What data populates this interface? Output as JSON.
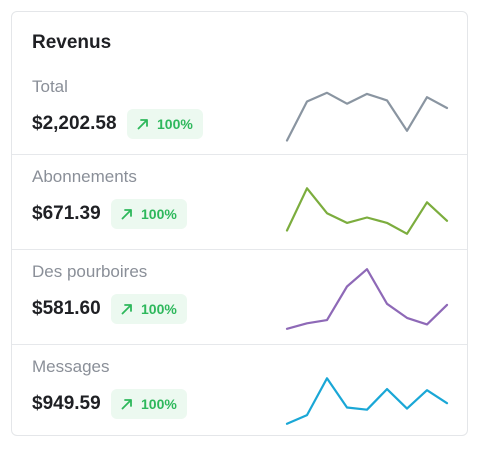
{
  "card": {
    "title": "Revenus"
  },
  "rows": [
    {
      "label": "Total",
      "value": "$2,202.58",
      "change": "100%",
      "trend_icon": "arrow-up-right-icon",
      "line_color": "#8a95a1",
      "sparkline": [
        6,
        42,
        50,
        40,
        49,
        43,
        15,
        46,
        36
      ]
    },
    {
      "label": "Abonnements",
      "value": "$671.39",
      "change": "100%",
      "trend_icon": "arrow-up-right-icon",
      "line_color": "#7cad3e",
      "sparkline": [
        6,
        45,
        22,
        13,
        18,
        13,
        3,
        32,
        15
      ]
    },
    {
      "label": "Des pourboires",
      "value": "$581.60",
      "change": "100%",
      "trend_icon": "arrow-up-right-icon",
      "line_color": "#8e69b7",
      "sparkline": [
        3,
        8,
        11,
        42,
        58,
        26,
        13,
        7,
        25
      ]
    },
    {
      "label": "Messages",
      "value": "$949.59",
      "change": "100%",
      "trend_icon": "arrow-up-right-icon",
      "line_color": "#1aa7d6",
      "sparkline": [
        3,
        11,
        45,
        18,
        16,
        35,
        17,
        34,
        22
      ]
    }
  ],
  "colors": {
    "badge_bg": "#ecf9f0",
    "badge_text": "#2eb85c"
  }
}
